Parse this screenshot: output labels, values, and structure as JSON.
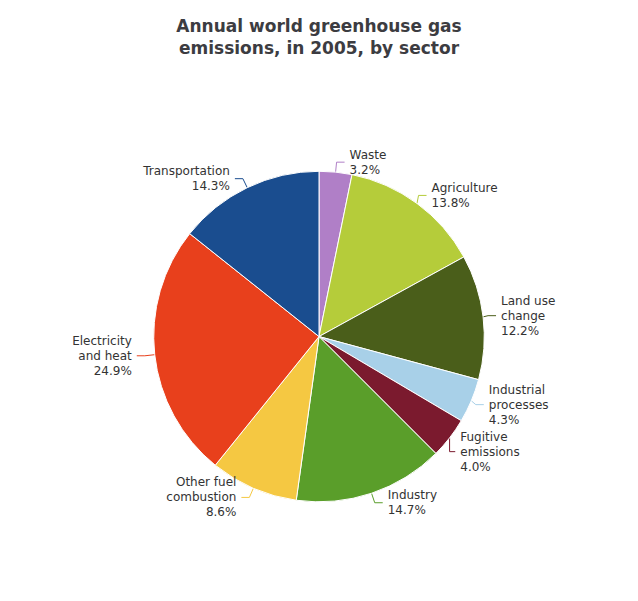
{
  "chart_data": {
    "type": "pie",
    "title": "Annual world greenhouse gas\nemissions, in 2005, by sector",
    "categories": [
      "Waste",
      "Agriculture",
      "Land use\nchange",
      "Industrial\nprocesses",
      "Fugitive\nemissions",
      "Industry",
      "Other fuel\ncombustion",
      "Electricity\nand heat",
      "Transportation"
    ],
    "values": [
      3.2,
      13.8,
      12.2,
      4.3,
      4.0,
      14.7,
      8.6,
      24.9,
      14.3
    ],
    "value_labels": [
      "3.2%",
      "13.8%",
      "12.2%",
      "4.3%",
      "4.0%",
      "14.7%",
      "8.6%",
      "24.9%",
      "14.3%"
    ],
    "colors": [
      "#b07fc7",
      "#b5cc3a",
      "#4a5e1a",
      "#a8d0e8",
      "#7b1a2e",
      "#5a9e2a",
      "#f5c842",
      "#e8401c",
      "#1a4d8f"
    ],
    "data_labels": true,
    "legend": false
  }
}
